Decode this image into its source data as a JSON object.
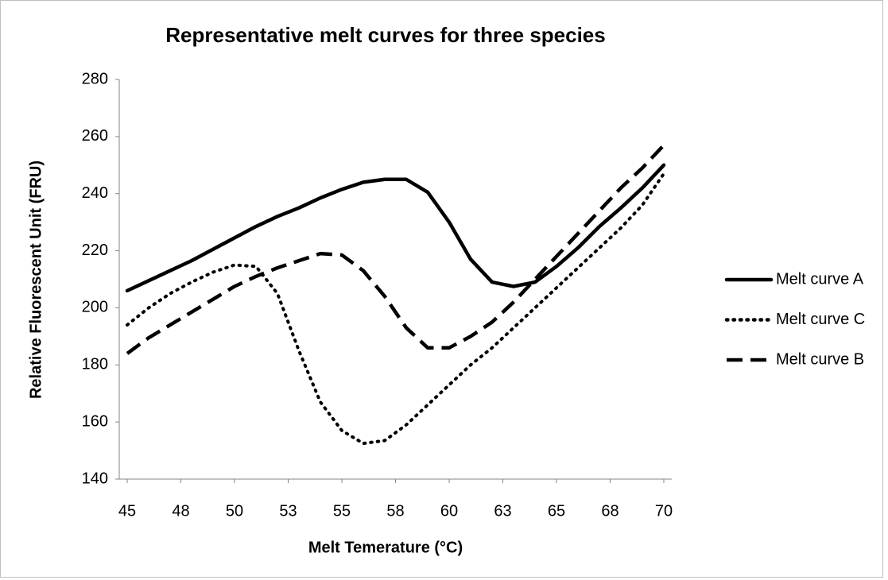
{
  "chart_data": {
    "type": "line",
    "title": "Representative melt curves for three species",
    "x_label": "Melt Temerature (°C)",
    "y_label": "Relative Fluorescent Unit (FRU)",
    "x": [
      45,
      46,
      47,
      48,
      49,
      50,
      51,
      52,
      53,
      54,
      55,
      56,
      57,
      58,
      59,
      60,
      61,
      62,
      63,
      64,
      65,
      66,
      67,
      68,
      69,
      70
    ],
    "series": [
      {
        "name": "Melt curve A",
        "color": "#000000",
        "dash": "solid",
        "values": [
          206,
          209.5,
          213,
          216.5,
          220.5,
          224.5,
          228.5,
          232,
          235,
          238.5,
          241.5,
          244,
          245,
          245,
          240.5,
          230,
          217,
          209,
          207.5,
          209,
          214.5,
          221,
          228.5,
          235,
          242,
          250
        ]
      },
      {
        "name": "Melt curve C",
        "color": "#000000",
        "dash": "dotted",
        "values": [
          194,
          200,
          205,
          209,
          212.5,
          215,
          214.5,
          205,
          185,
          167,
          157,
          152.5,
          153.5,
          159,
          166,
          173,
          180,
          186,
          193,
          200,
          207,
          214,
          221,
          228,
          236,
          247
        ]
      },
      {
        "name": "Melt curve B",
        "color": "#000000",
        "dash": "dashed",
        "values": [
          184,
          189.5,
          194,
          198.5,
          203,
          207.5,
          211,
          214,
          216.5,
          219,
          218.5,
          213,
          204,
          193,
          186,
          186,
          190,
          195,
          202,
          210,
          218,
          226,
          234,
          242,
          249,
          257
        ]
      }
    ],
    "xlim": [
      45,
      70
    ],
    "xticks": [
      45,
      {
        "value": 47.5,
        "label": "48"
      },
      50,
      {
        "value": 52.5,
        "label": "53"
      },
      55,
      {
        "value": 57.5,
        "label": "58"
      },
      60,
      {
        "value": 62.5,
        "label": "63"
      },
      65,
      {
        "value": 67.5,
        "label": "68"
      },
      70
    ],
    "ylim": [
      140,
      280
    ],
    "yticks": [
      140,
      160,
      180,
      200,
      220,
      240,
      260,
      280
    ],
    "grid": false,
    "legend": "right"
  }
}
